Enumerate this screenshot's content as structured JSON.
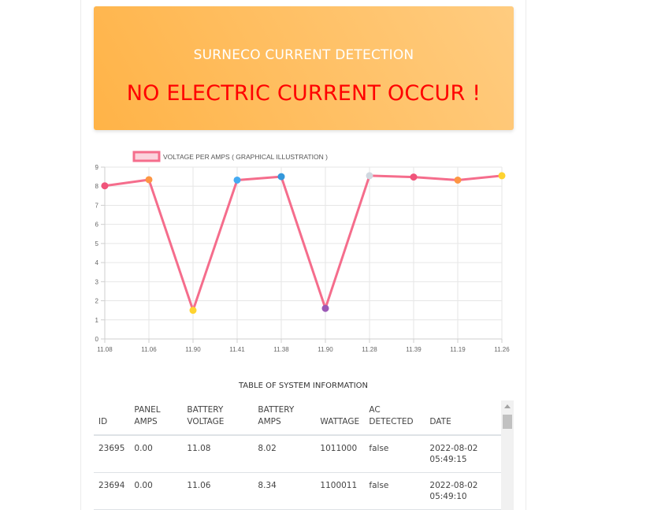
{
  "header": {
    "title": "SURNECO CURRENT DETECTION",
    "alert": "NO ELECTRIC CURRENT OCCUR !"
  },
  "colors": {
    "line": "#f56d8c",
    "banner_start": "#ffb347",
    "banner_end": "#ffcc80",
    "alert": "#ff0000"
  },
  "chart_data": {
    "type": "line",
    "title": "",
    "legend": "VOLTAGE PER AMPS ( GRAPHICAL ILLUSTRATION )",
    "legend_position": "top",
    "xlabel": "",
    "ylabel": "",
    "categories": [
      "11.08",
      "11.06",
      "11.90",
      "11.41",
      "11.38",
      "11.90",
      "11.28",
      "11.39",
      "11.19",
      "11.26"
    ],
    "values": [
      8.02,
      8.34,
      1.5,
      8.32,
      8.5,
      1.6,
      8.55,
      8.48,
      8.32,
      8.55
    ],
    "point_colors": [
      "#f0547a",
      "#fd9644",
      "#fed330",
      "#45aaf2",
      "#3498db",
      "#9b59b6",
      "#d1d8e0",
      "#f0547a",
      "#fd9644",
      "#fed330"
    ],
    "ylim": [
      0,
      9
    ],
    "y_ticks": [
      "0",
      "1",
      "2",
      "3",
      "4",
      "5",
      "6",
      "7",
      "8",
      "9"
    ],
    "grid": true
  },
  "table": {
    "title": "TABLE OF SYSTEM INFORMATION",
    "headers": {
      "id": "ID",
      "panel_amps": "PANEL AMPS",
      "battery_voltage": "BATTERY VOLTAGE",
      "battery_amps": "BATTERY AMPS",
      "wattage": "WATTAGE",
      "ac_detected": "AC DETECTED",
      "date": "DATE"
    },
    "rows": [
      {
        "id": "23695",
        "panel_amps": "0.00",
        "battery_voltage": "11.08",
        "battery_amps": "8.02",
        "wattage": "1011000",
        "ac_detected": "false",
        "date": "2022-08-02 05:49:15"
      },
      {
        "id": "23694",
        "panel_amps": "0.00",
        "battery_voltage": "11.06",
        "battery_amps": "8.34",
        "wattage": "1100011",
        "ac_detected": "false",
        "date": "2022-08-02 05:49:10"
      }
    ]
  }
}
